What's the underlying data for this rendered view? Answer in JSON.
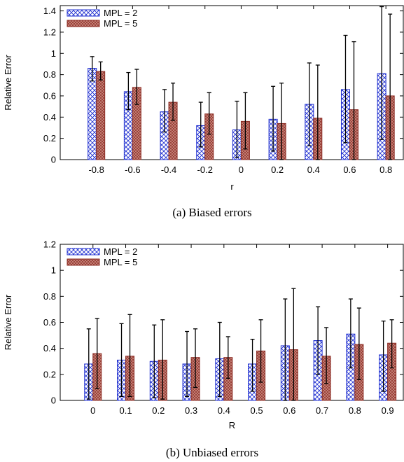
{
  "colors": {
    "series_a_stroke": "#1f2fd0",
    "series_b_fill": "#b96a5f",
    "series_b_stroke": "#8b2a22",
    "axis": "#000000"
  },
  "chart_data": [
    {
      "type": "bar",
      "caption": "(a) Biased errors",
      "xlabel": "r",
      "ylabel": "Relative Error",
      "ylim": [
        0,
        1.45
      ],
      "yticks": [
        "0",
        "0.2",
        "0.4",
        "0.6",
        "0.8",
        "1",
        "1.2",
        "1.4"
      ],
      "ytick_values": [
        0,
        0.2,
        0.4,
        0.6,
        0.8,
        1,
        1.2,
        1.4
      ],
      "categories": [
        "-0.8",
        "-0.6",
        "-0.4",
        "-0.2",
        "0",
        "0.2",
        "0.4",
        "0.6",
        "0.8"
      ],
      "legend_position": "top-left",
      "series": [
        {
          "name": "MPL = 2",
          "values": [
            0.86,
            0.64,
            0.45,
            0.32,
            0.28,
            0.38,
            0.52,
            0.66,
            0.81
          ],
          "err_low": [
            0.74,
            0.47,
            0.26,
            0.12,
            0.02,
            0.08,
            0.13,
            0.16,
            0.19
          ],
          "err_high": [
            0.97,
            0.82,
            0.66,
            0.54,
            0.55,
            0.69,
            0.91,
            1.17,
            1.44
          ]
        },
        {
          "name": "MPL = 5",
          "values": [
            0.83,
            0.68,
            0.54,
            0.43,
            0.36,
            0.34,
            0.39,
            0.47,
            0.6
          ],
          "err_low": [
            0.75,
            0.52,
            0.37,
            0.24,
            0.1,
            0.0,
            0.0,
            0.0,
            0.0
          ],
          "err_high": [
            0.92,
            0.85,
            0.72,
            0.63,
            0.63,
            0.72,
            0.89,
            1.11,
            1.37
          ]
        }
      ]
    },
    {
      "type": "bar",
      "caption": "(b) Unbiased errors",
      "xlabel": "R",
      "ylabel": "Relative Error",
      "ylim": [
        0,
        1.2
      ],
      "yticks": [
        "0",
        "0.2",
        "0.4",
        "0.6",
        "0.8",
        "1",
        "1.2"
      ],
      "ytick_values": [
        0,
        0.2,
        0.4,
        0.6,
        0.8,
        1,
        1.2
      ],
      "categories": [
        "0",
        "0.1",
        "0.2",
        "0.3",
        "0.4",
        "0.5",
        "0.6",
        "0.7",
        "0.8",
        "0.9"
      ],
      "legend_position": "top-left",
      "series": [
        {
          "name": "MPL = 2",
          "values": [
            0.28,
            0.31,
            0.3,
            0.28,
            0.32,
            0.28,
            0.42,
            0.46,
            0.51,
            0.35
          ],
          "err_low": [
            0.01,
            0.03,
            0.02,
            0.03,
            0.03,
            0.07,
            0.0,
            0.2,
            0.25,
            0.07
          ],
          "err_high": [
            0.55,
            0.59,
            0.58,
            0.53,
            0.6,
            0.47,
            0.78,
            0.72,
            0.78,
            0.61
          ]
        },
        {
          "name": "MPL = 5",
          "values": [
            0.36,
            0.34,
            0.31,
            0.33,
            0.33,
            0.38,
            0.39,
            0.34,
            0.43,
            0.44
          ],
          "err_low": [
            0.09,
            0.03,
            0.01,
            0.1,
            0.17,
            0.14,
            0.0,
            0.13,
            0.16,
            0.25
          ],
          "err_high": [
            0.63,
            0.66,
            0.62,
            0.55,
            0.49,
            0.62,
            0.86,
            0.56,
            0.71,
            0.62
          ]
        }
      ]
    }
  ]
}
